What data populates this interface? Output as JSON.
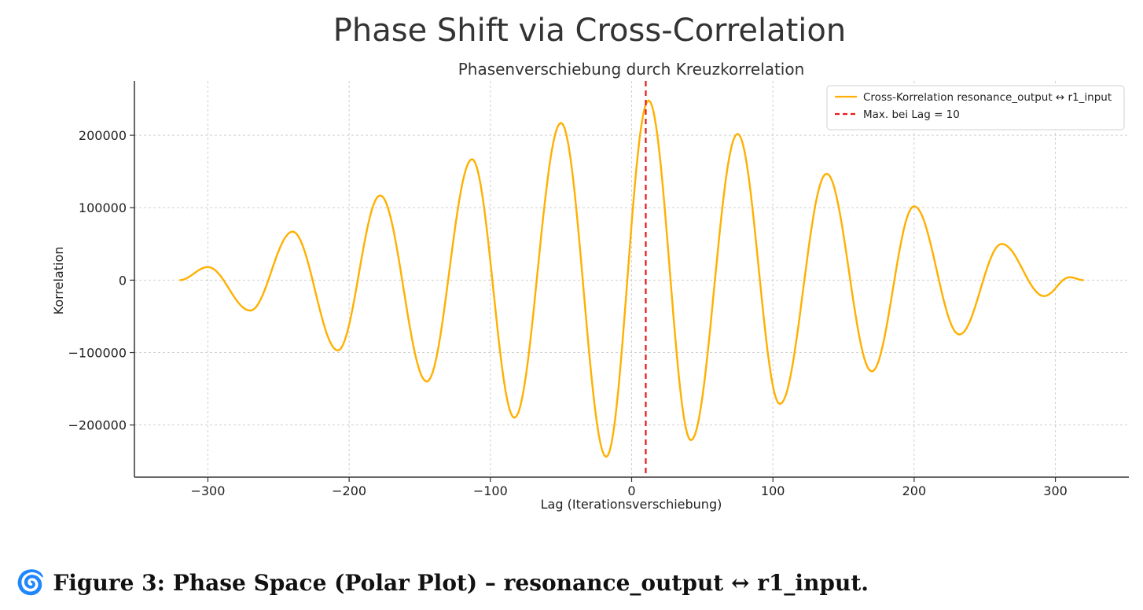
{
  "figure_title": "Phase Shift via Cross-Correlation",
  "caption": {
    "icon": "spiral-emoji",
    "icon_glyph": "🌀",
    "text": "Figure 3: Phase Space (Polar Plot) – resonance_output ↔ r1_input."
  },
  "chart_data": {
    "type": "line",
    "title": "Phasenverschiebung durch Kreuzkorrelation",
    "xlabel": "Lag (Iterationsverschiebung)",
    "ylabel": "Korrelation",
    "xlim": [
      -352,
      352
    ],
    "ylim": [
      -272000,
      275000
    ],
    "xticks": [
      -300,
      -200,
      -100,
      0,
      100,
      200,
      300
    ],
    "xtick_labels": [
      "−300",
      "−200",
      "−100",
      "0",
      "100",
      "200",
      "300"
    ],
    "yticks": [
      -200000,
      -100000,
      0,
      100000,
      200000
    ],
    "ytick_labels": [
      "−200000",
      "−100000",
      "0",
      "100000",
      "200000"
    ],
    "grid": true,
    "legend_position": "top-right",
    "series": [
      {
        "name": "Cross-Korrelation resonance_output ↔ r1_input",
        "color": "#FFB000",
        "style": "solid",
        "x": [
          -320,
          -300,
          -270,
          -240,
          -208,
          -178,
          -145,
          -113,
          -83,
          -50,
          -18,
          12,
          42,
          75,
          105,
          138,
          170,
          200,
          232,
          262,
          292,
          310,
          320
        ],
        "y": [
          0,
          18000,
          -42000,
          67000,
          -97000,
          117000,
          -140000,
          167000,
          -190000,
          217000,
          -244000,
          248000,
          -221000,
          202000,
          -171000,
          147000,
          -126000,
          102000,
          -75000,
          50000,
          -22000,
          4000,
          0
        ]
      }
    ],
    "vlines": [
      {
        "name": "Max. bei Lag = 10",
        "x": 10,
        "color": "#e41a1c",
        "style": "dashed"
      }
    ]
  }
}
